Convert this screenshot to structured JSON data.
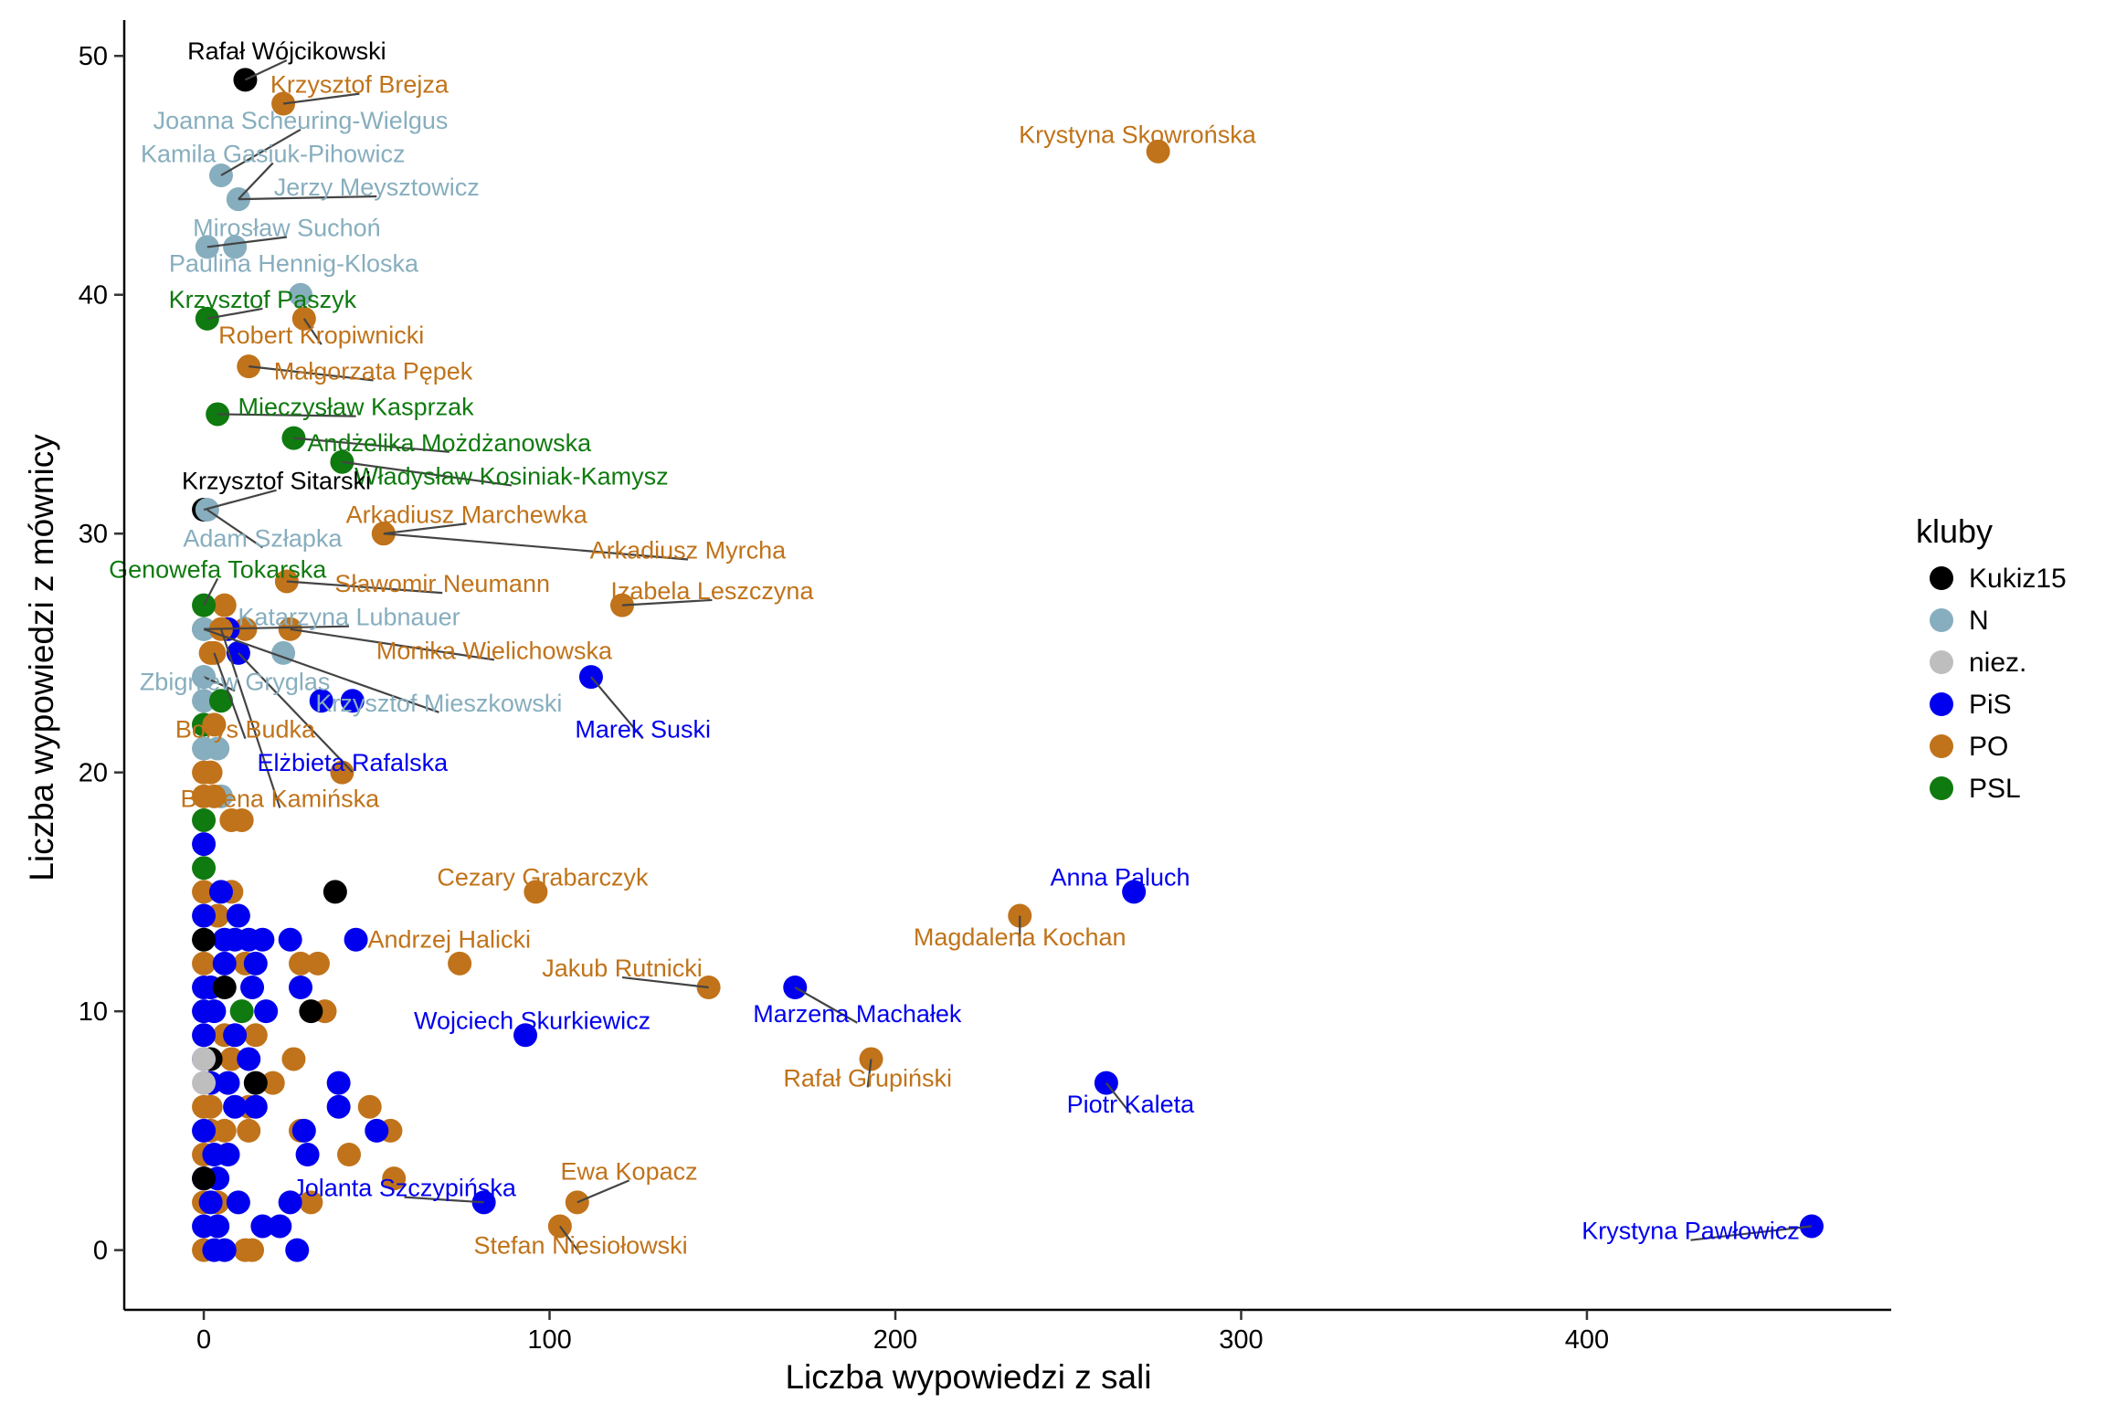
{
  "chart_data": {
    "type": "scatter",
    "xlabel": "Liczba wypowiedzi z sali",
    "ylabel": "Liczba wypowiedzi z mównicy",
    "xlim": [
      -23,
      488
    ],
    "ylim": [
      -2.5,
      51.5
    ],
    "xticks": [
      0,
      100,
      200,
      300,
      400
    ],
    "yticks": [
      0,
      10,
      20,
      30,
      40,
      50
    ],
    "xtick_labels": [
      "0",
      "100",
      "200",
      "300",
      "400"
    ],
    "ytick_labels": [
      "0",
      "10",
      "20",
      "30",
      "40",
      "50"
    ],
    "grid": false,
    "legend": {
      "title": "kluby",
      "position": "right",
      "entries": [
        {
          "key": "Kukiz15",
          "label": "Kukiz15",
          "color": "#000000"
        },
        {
          "key": "N",
          "label": "N",
          "color": "#87aebe"
        },
        {
          "key": "niez",
          "label": "niez.",
          "color": "#bebebe"
        },
        {
          "key": "PiS",
          "label": "PiS",
          "color": "#0000ee"
        },
        {
          "key": "PO",
          "label": "PO",
          "color": "#c0731a"
        },
        {
          "key": "PSL",
          "label": "PSL",
          "color": "#0f7a0f"
        }
      ]
    },
    "labeled_points": [
      {
        "name": "Rafał Wójcikowski",
        "club": "Kukiz15",
        "x": 12,
        "y": 49,
        "lx": 24,
        "ly": 50.2
      },
      {
        "name": "Krzysztof Brejza",
        "club": "PO",
        "x": 23,
        "y": 48,
        "lx": 45,
        "ly": 48.8
      },
      {
        "name": "Joanna Scheuring-Wielgus",
        "club": "N",
        "x": 5,
        "y": 45,
        "lx": 28,
        "ly": 47.3
      },
      {
        "name": "Kamila Gasiuk-Pihowicz",
        "club": "N",
        "x": 10,
        "y": 44,
        "lx": 20,
        "ly": 45.9
      },
      {
        "name": "Jerzy Meysztowicz",
        "club": "N",
        "x": 10,
        "y": 44,
        "lx": 50,
        "ly": 44.5
      },
      {
        "name": "Mirosław Suchoń",
        "club": "N",
        "x": 1,
        "y": 42,
        "lx": 24,
        "ly": 42.8
      },
      {
        "name": "Paulina Hennig-Kloska",
        "club": "N",
        "x": 28,
        "y": 40,
        "lx": 26,
        "ly": 41.3
      },
      {
        "name": "Krzysztof Paszyk",
        "club": "PSL",
        "x": 1,
        "y": 39,
        "lx": 17,
        "ly": 39.8
      },
      {
        "name": "Robert Kropiwnicki",
        "club": "PO",
        "x": 29,
        "y": 39,
        "lx": 34,
        "ly": 38.3
      },
      {
        "name": "Małgorzata Pępek",
        "club": "PO",
        "x": 13,
        "y": 37,
        "lx": 49,
        "ly": 36.8
      },
      {
        "name": "Mieczysław Kasprzak",
        "club": "PSL",
        "x": 4,
        "y": 35,
        "lx": 44,
        "ly": 35.3
      },
      {
        "name": "Andżelika Możdżanowska",
        "club": "PSL",
        "x": 26,
        "y": 34,
        "lx": 71,
        "ly": 33.8
      },
      {
        "name": "Władysław Kosiniak-Kamysz",
        "club": "PSL",
        "x": 40,
        "y": 33,
        "lx": 89,
        "ly": 32.4
      },
      {
        "name": "Krzysztof Sitarski",
        "club": "Kukiz15",
        "x": 0,
        "y": 31,
        "lx": 21,
        "ly": 32.2
      },
      {
        "name": "Adam Szłapka",
        "club": "N",
        "x": 1,
        "y": 31,
        "lx": 17,
        "ly": 29.8
      },
      {
        "name": "Arkadiusz Marchewka",
        "club": "PO",
        "x": 52,
        "y": 30,
        "lx": 76,
        "ly": 30.8
      },
      {
        "name": "Arkadiusz Myrcha",
        "club": "PO",
        "x": 52,
        "y": 30,
        "lx": 140,
        "ly": 29.3
      },
      {
        "name": "Genowefa Tokarska",
        "club": "PSL",
        "x": 0,
        "y": 27,
        "lx": 4,
        "ly": 28.5
      },
      {
        "name": "Sławomir Neumann",
        "club": "PO",
        "x": 24,
        "y": 28,
        "lx": 69,
        "ly": 27.9
      },
      {
        "name": "Izabela Leszczyna",
        "club": "PO",
        "x": 121,
        "y": 27,
        "lx": 147,
        "ly": 27.6
      },
      {
        "name": "Katarzyna Lubnauer",
        "club": "N",
        "x": 0,
        "y": 26,
        "lx": 42,
        "ly": 26.5
      },
      {
        "name": "Monika Wielichowska",
        "club": "PO",
        "x": 25,
        "y": 26,
        "lx": 84,
        "ly": 25.1
      },
      {
        "name": "Marek Suski",
        "club": "PiS",
        "x": 112,
        "y": 24,
        "lx": 127,
        "ly": 21.8
      },
      {
        "name": "Zbigniew Gryglas",
        "club": "N",
        "x": 0,
        "y": 24,
        "lx": 9,
        "ly": 23.8
      },
      {
        "name": "Krzysztof Mieszkowski",
        "club": "N",
        "x": 0,
        "y": 26,
        "lx": 68,
        "ly": 22.9
      },
      {
        "name": "Borys Budka",
        "club": "PO",
        "x": 3,
        "y": 25,
        "lx": 12,
        "ly": 21.8
      },
      {
        "name": "Elżbieta Rafalska",
        "club": "PiS",
        "x": 10,
        "y": 25,
        "lx": 43,
        "ly": 20.4
      },
      {
        "name": "Bożena Kamińska",
        "club": "PO",
        "x": 5,
        "y": 26,
        "lx": 22,
        "ly": 18.9
      },
      {
        "name": "Cezary Grabarczyk",
        "club": "PO",
        "x": 96,
        "y": 15,
        "lx": 98,
        "ly": 15.6
      },
      {
        "name": "Anna Paluch",
        "club": "PiS",
        "x": 269,
        "y": 15,
        "lx": 265,
        "ly": 15.6
      },
      {
        "name": "Magdalena Kochan",
        "club": "PO",
        "x": 236,
        "y": 14,
        "lx": 236,
        "ly": 13.1
      },
      {
        "name": "Andrzej Halicki",
        "club": "PO",
        "x": 74,
        "y": 12,
        "lx": 71,
        "ly": 13.0
      },
      {
        "name": "Jakub Rutnicki",
        "club": "PO",
        "x": 146,
        "y": 11,
        "lx": 121,
        "ly": 11.8
      },
      {
        "name": "Marzena Machałek",
        "club": "PiS",
        "x": 171,
        "y": 11,
        "lx": 189,
        "ly": 9.9
      },
      {
        "name": "Wojciech Skurkiewicz",
        "club": "PiS",
        "x": 93,
        "y": 9,
        "lx": 95,
        "ly": 9.6
      },
      {
        "name": "Rafał Grupiński",
        "club": "PO",
        "x": 193,
        "y": 8,
        "lx": 192,
        "ly": 7.2
      },
      {
        "name": "Piotr Kaleta",
        "club": "PiS",
        "x": 261,
        "y": 7,
        "lx": 268,
        "ly": 6.1
      },
      {
        "name": "Ewa Kopacz",
        "club": "PO",
        "x": 108,
        "y": 2,
        "lx": 123,
        "ly": 3.3
      },
      {
        "name": "Jolanta Szczypińska",
        "club": "PiS",
        "x": 81,
        "y": 2,
        "lx": 58,
        "ly": 2.6
      },
      {
        "name": "Stefan Niesiołowski",
        "club": "PO",
        "x": 103,
        "y": 1,
        "lx": 109,
        "ly": 0.2
      },
      {
        "name": "Krystyna Pawłowicz",
        "club": "PiS",
        "x": 465,
        "y": 1,
        "lx": 430,
        "ly": 0.8
      },
      {
        "name": "Krystyna Skowrońska",
        "club": "PO",
        "x": 276,
        "y": 46,
        "lx": 270,
        "ly": 46.7
      }
    ],
    "points": [
      {
        "club": "N",
        "x": 9,
        "y": 42
      },
      {
        "club": "N",
        "x": 0,
        "y": 26
      },
      {
        "club": "N",
        "x": 23,
        "y": 25
      },
      {
        "club": "N",
        "x": 0,
        "y": 23
      },
      {
        "club": "N",
        "x": 0,
        "y": 22
      },
      {
        "club": "N",
        "x": 0,
        "y": 21
      },
      {
        "club": "N",
        "x": 4,
        "y": 21
      },
      {
        "club": "N",
        "x": 5,
        "y": 19
      },
      {
        "club": "N",
        "x": 0,
        "y": 24
      },
      {
        "club": "PSL",
        "x": 0,
        "y": 22
      },
      {
        "club": "PSL",
        "x": 5,
        "y": 23
      },
      {
        "club": "PSL",
        "x": 0,
        "y": 18
      },
      {
        "club": "PSL",
        "x": 0,
        "y": 16
      },
      {
        "club": "PSL",
        "x": 11,
        "y": 10
      },
      {
        "club": "PO",
        "x": 6,
        "y": 27
      },
      {
        "club": "PO",
        "x": 12,
        "y": 26
      },
      {
        "club": "PO",
        "x": 2,
        "y": 25
      },
      {
        "club": "PO",
        "x": 3,
        "y": 22
      },
      {
        "club": "PO",
        "x": 0,
        "y": 20
      },
      {
        "club": "PO",
        "x": 2,
        "y": 20
      },
      {
        "club": "PO",
        "x": 0,
        "y": 19
      },
      {
        "club": "PO",
        "x": 3,
        "y": 19
      },
      {
        "club": "PO",
        "x": 8,
        "y": 18
      },
      {
        "club": "PO",
        "x": 11,
        "y": 18
      },
      {
        "club": "PO",
        "x": 40,
        "y": 20
      },
      {
        "club": "PO",
        "x": 0,
        "y": 15
      },
      {
        "club": "PO",
        "x": 8,
        "y": 15
      },
      {
        "club": "PO",
        "x": 4,
        "y": 14
      },
      {
        "club": "PO",
        "x": 0,
        "y": 12
      },
      {
        "club": "PO",
        "x": 12,
        "y": 12
      },
      {
        "club": "PO",
        "x": 28,
        "y": 12
      },
      {
        "club": "PO",
        "x": 33,
        "y": 12
      },
      {
        "club": "PO",
        "x": 2,
        "y": 11
      },
      {
        "club": "PO",
        "x": 35,
        "y": 10
      },
      {
        "club": "PO",
        "x": 6,
        "y": 9
      },
      {
        "club": "PO",
        "x": 15,
        "y": 9
      },
      {
        "club": "PO",
        "x": 8,
        "y": 8
      },
      {
        "club": "PO",
        "x": 26,
        "y": 8
      },
      {
        "club": "PO",
        "x": 20,
        "y": 7
      },
      {
        "club": "PO",
        "x": 0,
        "y": 6
      },
      {
        "club": "PO",
        "x": 2,
        "y": 6
      },
      {
        "club": "PO",
        "x": 13,
        "y": 6
      },
      {
        "club": "PO",
        "x": 48,
        "y": 6
      },
      {
        "club": "PO",
        "x": 2,
        "y": 5
      },
      {
        "club": "PO",
        "x": 6,
        "y": 5
      },
      {
        "club": "PO",
        "x": 13,
        "y": 5
      },
      {
        "club": "PO",
        "x": 28,
        "y": 5
      },
      {
        "club": "PO",
        "x": 54,
        "y": 5
      },
      {
        "club": "PO",
        "x": 0,
        "y": 4
      },
      {
        "club": "PO",
        "x": 42,
        "y": 4
      },
      {
        "club": "PO",
        "x": 55,
        "y": 3
      },
      {
        "club": "PO",
        "x": 0,
        "y": 2
      },
      {
        "club": "PO",
        "x": 4,
        "y": 2
      },
      {
        "club": "PO",
        "x": 31,
        "y": 2
      },
      {
        "club": "PO",
        "x": 0,
        "y": 0
      },
      {
        "club": "PO",
        "x": 12,
        "y": 0
      },
      {
        "club": "PO",
        "x": 14,
        "y": 0
      },
      {
        "club": "PiS",
        "x": 0,
        "y": 17
      },
      {
        "club": "PiS",
        "x": 7,
        "y": 26
      },
      {
        "club": "PiS",
        "x": 34,
        "y": 23
      },
      {
        "club": "PiS",
        "x": 43,
        "y": 23
      },
      {
        "club": "PiS",
        "x": 5,
        "y": 15
      },
      {
        "club": "PiS",
        "x": 0,
        "y": 14
      },
      {
        "club": "PiS",
        "x": 10,
        "y": 14
      },
      {
        "club": "PiS",
        "x": 6,
        "y": 13
      },
      {
        "club": "PiS",
        "x": 9,
        "y": 13
      },
      {
        "club": "PiS",
        "x": 13,
        "y": 13
      },
      {
        "club": "PiS",
        "x": 17,
        "y": 13
      },
      {
        "club": "PiS",
        "x": 25,
        "y": 13
      },
      {
        "club": "PiS",
        "x": 44,
        "y": 13
      },
      {
        "club": "PiS",
        "x": 6,
        "y": 12
      },
      {
        "club": "PiS",
        "x": 15,
        "y": 12
      },
      {
        "club": "PiS",
        "x": 0,
        "y": 11
      },
      {
        "club": "PiS",
        "x": 2,
        "y": 11
      },
      {
        "club": "PiS",
        "x": 14,
        "y": 11
      },
      {
        "club": "PiS",
        "x": 28,
        "y": 11
      },
      {
        "club": "PiS",
        "x": 0,
        "y": 10
      },
      {
        "club": "PiS",
        "x": 3,
        "y": 10
      },
      {
        "club": "PiS",
        "x": 18,
        "y": 10
      },
      {
        "club": "PiS",
        "x": 0,
        "y": 9
      },
      {
        "club": "PiS",
        "x": 9,
        "y": 9
      },
      {
        "club": "PiS",
        "x": 0,
        "y": 8
      },
      {
        "club": "PiS",
        "x": 13,
        "y": 8
      },
      {
        "club": "PiS",
        "x": 2,
        "y": 7
      },
      {
        "club": "PiS",
        "x": 7,
        "y": 7
      },
      {
        "club": "PiS",
        "x": 39,
        "y": 7
      },
      {
        "club": "PiS",
        "x": 9,
        "y": 6
      },
      {
        "club": "PiS",
        "x": 15,
        "y": 6
      },
      {
        "club": "PiS",
        "x": 39,
        "y": 6
      },
      {
        "club": "PiS",
        "x": 0,
        "y": 5
      },
      {
        "club": "PiS",
        "x": 29,
        "y": 5
      },
      {
        "club": "PiS",
        "x": 50,
        "y": 5
      },
      {
        "club": "PiS",
        "x": 3,
        "y": 4
      },
      {
        "club": "PiS",
        "x": 7,
        "y": 4
      },
      {
        "club": "PiS",
        "x": 30,
        "y": 4
      },
      {
        "club": "PiS",
        "x": 0,
        "y": 3
      },
      {
        "club": "PiS",
        "x": 4,
        "y": 3
      },
      {
        "club": "PiS",
        "x": 2,
        "y": 2
      },
      {
        "club": "PiS",
        "x": 10,
        "y": 2
      },
      {
        "club": "PiS",
        "x": 25,
        "y": 2
      },
      {
        "club": "PiS",
        "x": 0,
        "y": 1
      },
      {
        "club": "PiS",
        "x": 4,
        "y": 1
      },
      {
        "club": "PiS",
        "x": 17,
        "y": 1
      },
      {
        "club": "PiS",
        "x": 22,
        "y": 1
      },
      {
        "club": "PiS",
        "x": 3,
        "y": 0
      },
      {
        "club": "PiS",
        "x": 6,
        "y": 0
      },
      {
        "club": "PiS",
        "x": 27,
        "y": 0
      },
      {
        "club": "Kukiz15",
        "x": 38,
        "y": 15
      },
      {
        "club": "Kukiz15",
        "x": 0,
        "y": 13
      },
      {
        "club": "Kukiz15",
        "x": 6,
        "y": 11
      },
      {
        "club": "Kukiz15",
        "x": 31,
        "y": 10
      },
      {
        "club": "Kukiz15",
        "x": 2,
        "y": 8
      },
      {
        "club": "Kukiz15",
        "x": 15,
        "y": 7
      },
      {
        "club": "Kukiz15",
        "x": 0,
        "y": 3
      },
      {
        "club": "niez",
        "x": 0,
        "y": 8
      },
      {
        "club": "niez",
        "x": 0,
        "y": 7
      }
    ]
  }
}
